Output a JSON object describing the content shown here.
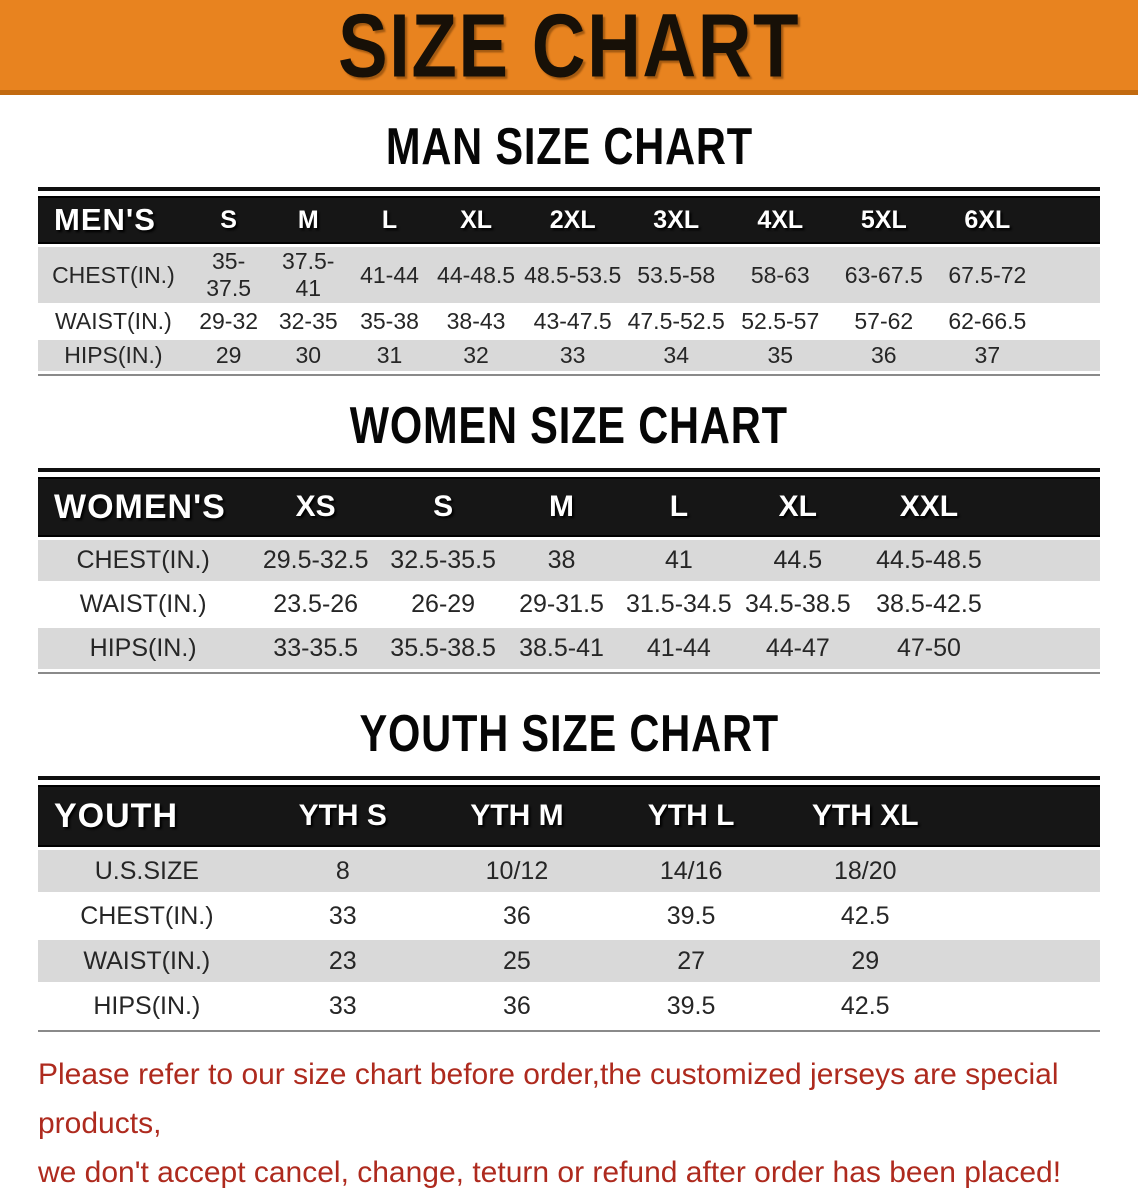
{
  "banner": {
    "title": "SIZE CHART"
  },
  "men": {
    "title": "MAN SIZE CHART",
    "header_label": "MEN'S",
    "columns": [
      "S",
      "M",
      "L",
      "XL",
      "2XL",
      "3XL",
      "4XL",
      "5XL",
      "6XL"
    ],
    "rows": [
      {
        "label": "CHEST(IN.)",
        "values": [
          "35-37.5",
          "37.5-41",
          "41-44",
          "44-48.5",
          "48.5-53.5",
          "53.5-58",
          "58-63",
          "63-67.5",
          "67.5-72"
        ]
      },
      {
        "label": "WAIST(IN.)",
        "values": [
          "29-32",
          "32-35",
          "35-38",
          "38-43",
          "43-47.5",
          "47.5-52.5",
          "52.5-57",
          "57-62",
          "62-66.5"
        ]
      },
      {
        "label": "HIPS(IN.)",
        "values": [
          "29",
          "30",
          "31",
          "32",
          "33",
          "34",
          "35",
          "36",
          "37"
        ]
      }
    ]
  },
  "women": {
    "title": "WOMEN SIZE CHART",
    "header_label": "WOMEN'S",
    "columns": [
      "XS",
      "S",
      "M",
      "L",
      "XL",
      "XXL"
    ],
    "rows": [
      {
        "label": "CHEST(IN.)",
        "values": [
          "29.5-32.5",
          "32.5-35.5",
          "38",
          "41",
          "44.5",
          "44.5-48.5"
        ]
      },
      {
        "label": "WAIST(IN.)",
        "values": [
          "23.5-26",
          "26-29",
          "29-31.5",
          "31.5-34.5",
          "34.5-38.5",
          "38.5-42.5"
        ]
      },
      {
        "label": "HIPS(IN.)",
        "values": [
          "33-35.5",
          "35.5-38.5",
          "38.5-41",
          "41-44",
          "44-47",
          "47-50"
        ]
      }
    ]
  },
  "youth": {
    "title": "YOUTH SIZE CHART",
    "header_label": "YOUTH",
    "columns": [
      "YTH S",
      "YTH M",
      "YTH L",
      "YTH XL"
    ],
    "rows": [
      {
        "label": "U.S.SIZE",
        "values": [
          "8",
          "10/12",
          "14/16",
          "18/20"
        ]
      },
      {
        "label": "CHEST(IN.)",
        "values": [
          "33",
          "36",
          "39.5",
          "42.5"
        ]
      },
      {
        "label": "WAIST(IN.)",
        "values": [
          "23",
          "25",
          "27",
          "29"
        ]
      },
      {
        "label": "HIPS(IN.)",
        "values": [
          "33",
          "36",
          "39.5",
          "42.5"
        ]
      }
    ]
  },
  "note": {
    "line1": "Please refer to our size chart before order,the customized jerseys are special products,",
    "line2": "we don't accept cancel, change, teturn or refund after order has been placed!"
  },
  "colors": {
    "banner_bg": "#E8831F",
    "banner_edge": "#C26A10",
    "header_bg": "#161616",
    "row_alt": "#D9D9D9",
    "note_red": "#AE2A1E"
  }
}
